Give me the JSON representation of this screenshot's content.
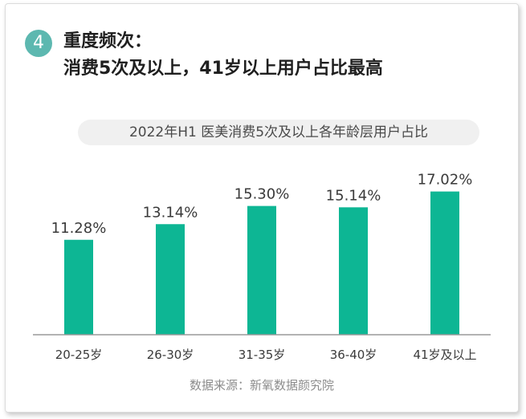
{
  "header": {
    "badge": "4",
    "line1": "重度频次：",
    "line2": "消费5次及以上，41岁以上用户占比最高"
  },
  "source": "数据来源：新氧数据颜究院",
  "colors": {
    "bar": "#0db694",
    "badge": "#5db8b0",
    "axis": "#9a9a9a"
  },
  "chart_data": {
    "type": "bar",
    "title": "2022年H1 医美消费5次及以上各年龄层用户占比",
    "categories": [
      "20-25岁",
      "26-30岁",
      "31-35岁",
      "36-40岁",
      "41岁及以上"
    ],
    "values": [
      11.28,
      13.14,
      15.3,
      15.14,
      17.02
    ],
    "value_labels": [
      "11.28%",
      "13.14%",
      "15.30%",
      "15.14%",
      "17.02%"
    ],
    "xlabel": "",
    "ylabel": "",
    "ylim": [
      0,
      20.7
    ],
    "grid": false
  }
}
